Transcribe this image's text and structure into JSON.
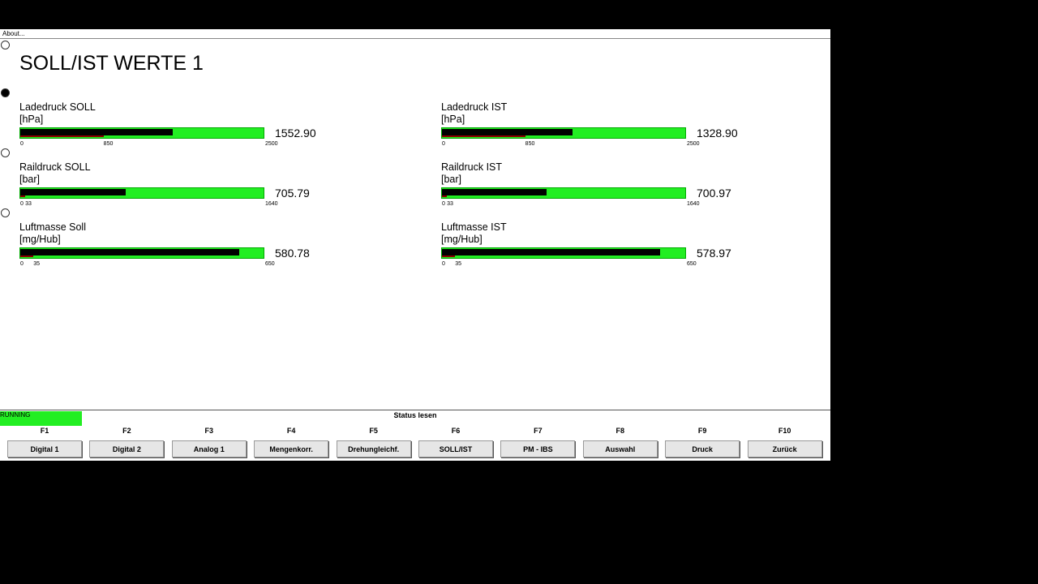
{
  "menu": {
    "about": "About..."
  },
  "title": "SOLL/IST WERTE 1",
  "gauges": [
    {
      "label": "Ladedruck SOLL",
      "unit": "[hPa]",
      "ticks": [
        0,
        850,
        2500
      ],
      "value": {
        "value": 1552.9,
        "label": "1552.90"
      }
    },
    {
      "label": "Ladedruck IST",
      "unit": "[hPa]",
      "ticks": [
        0,
        850,
        2500
      ],
      "value": {
        "value": 1328.9,
        "label": "1328.90"
      }
    },
    {
      "label": "Raildruck SOLL",
      "unit": "[bar]",
      "ticks": [
        0,
        33,
        1640
      ],
      "value": {
        "value": 705.79,
        "label": "705.79"
      }
    },
    {
      "label": "Raildruck IST",
      "unit": "[bar]",
      "ticks": [
        0,
        33,
        1640
      ],
      "value": {
        "value": 700.97,
        "label": "700.97"
      }
    },
    {
      "label": "Luftmasse Soll",
      "unit": "[mg/Hub]",
      "ticks": [
        0,
        35,
        650
      ],
      "value": {
        "value": 580.78,
        "label": "580.78"
      }
    },
    {
      "label": "Luftmasse IST",
      "unit": "[mg/Hub]",
      "ticks": [
        0,
        35,
        650
      ],
      "value": {
        "value": 578.97,
        "label": "578.97"
      }
    }
  ],
  "status": {
    "state": "RUNNING",
    "caption": "Status lesen"
  },
  "function_keys": [
    {
      "key": "F1",
      "label": "Digital 1"
    },
    {
      "key": "F2",
      "label": "Digital 2"
    },
    {
      "key": "F3",
      "label": "Analog 1"
    },
    {
      "key": "F4",
      "label": "Mengenkorr."
    },
    {
      "key": "F5",
      "label": "Drehungleichf."
    },
    {
      "key": "F6",
      "label": "SOLL/IST"
    },
    {
      "key": "F7",
      "label": "PM - IBS"
    },
    {
      "key": "F8",
      "label": "Auswahl"
    },
    {
      "key": "F9",
      "label": "Druck"
    },
    {
      "key": "F10",
      "label": "Zurück"
    }
  ]
}
